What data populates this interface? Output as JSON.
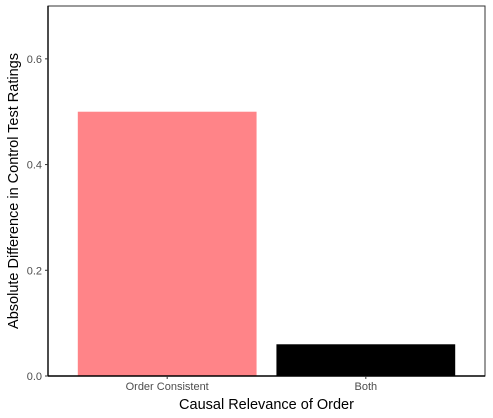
{
  "chart_data": {
    "type": "bar",
    "title": "",
    "xlabel": "Causal Relevance of Order",
    "ylabel": "Absolute Difference in Control Test Ratings",
    "categories": [
      "Order Consistent",
      "Both"
    ],
    "values": [
      0.5,
      0.06
    ],
    "colors": [
      "#ff8488",
      "#000000"
    ],
    "ylim": [
      0,
      0.7
    ],
    "yticks": [
      0.0,
      0.2,
      0.4,
      0.6
    ],
    "ytick_labels": [
      "0.0",
      "0.2",
      "0.4",
      "0.6"
    ],
    "grid": false,
    "legend": "none"
  }
}
